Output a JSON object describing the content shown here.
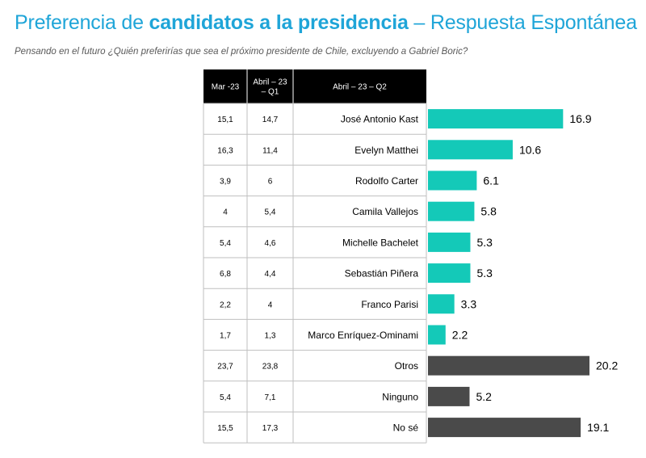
{
  "title": {
    "part1": "Preferencia de ",
    "part2": "candidatos a la presidencia",
    "part3": " – Respuesta Espontánea"
  },
  "subtitle": "Pensando en el futuro ¿Quién preferirías que sea el próximo presidente de Chile, excluyendo a Gabriel Boric?",
  "colors": {
    "candidate": "#14c9b8",
    "other": "#4a4a4a",
    "header_bg": "#000000",
    "border": "#bfbfbf"
  },
  "chart_data": {
    "type": "bar",
    "orientation": "horizontal",
    "columns": [
      "Mar -23",
      "Abril – 23 – Q1",
      "Abril – 23 – Q2"
    ],
    "rows": [
      {
        "name": "José Antonio Kast",
        "mar": "15,1",
        "q1": "14,7",
        "value": 16.9,
        "label": "16.9",
        "group": "candidate"
      },
      {
        "name": "Evelyn Matthei",
        "mar": "16,3",
        "q1": "11,4",
        "value": 10.6,
        "label": "10.6",
        "group": "candidate"
      },
      {
        "name": "Rodolfo Carter",
        "mar": "3,9",
        "q1": "6",
        "value": 6.1,
        "label": "6.1",
        "group": "candidate"
      },
      {
        "name": "Camila Vallejos",
        "mar": "4",
        "q1": "5,4",
        "value": 5.8,
        "label": "5.8",
        "group": "candidate"
      },
      {
        "name": "Michelle Bachelet",
        "mar": "5,4",
        "q1": "4,6",
        "value": 5.3,
        "label": "5.3",
        "group": "candidate"
      },
      {
        "name": "Sebastián Piñera",
        "mar": "6,8",
        "q1": "4,4",
        "value": 5.3,
        "label": "5.3",
        "group": "candidate"
      },
      {
        "name": "Franco Parisi",
        "mar": "2,2",
        "q1": "4",
        "value": 3.3,
        "label": "3.3",
        "group": "candidate"
      },
      {
        "name": "Marco Enríquez-Ominami",
        "mar": "1,7",
        "q1": "1,3",
        "value": 2.2,
        "label": "2.2",
        "group": "candidate"
      },
      {
        "name": "Otros",
        "mar": "23,7",
        "q1": "23,8",
        "value": 20.2,
        "label": "20.2",
        "group": "other"
      },
      {
        "name": "Ninguno",
        "mar": "5,4",
        "q1": "7,1",
        "value": 5.2,
        "label": "5.2",
        "group": "other"
      },
      {
        "name": "No sé",
        "mar": "15,5",
        "q1": "17,3",
        "value": 19.1,
        "label": "19.1",
        "group": "other"
      }
    ],
    "xlim": [
      0,
      20.2
    ]
  }
}
